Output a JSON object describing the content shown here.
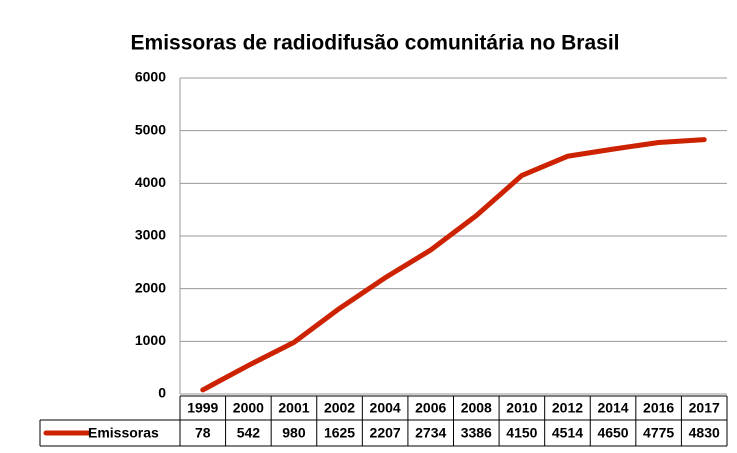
{
  "chart_data": {
    "type": "line",
    "title": "Emissoras de radiodifusão comunitária no Brasil",
    "categories": [
      "1999",
      "2000",
      "2001",
      "2002",
      "2004",
      "2006",
      "2008",
      "2010",
      "2012",
      "2014",
      "2016",
      "2017"
    ],
    "series": [
      {
        "name": "Emissoras",
        "color": "#cc2200",
        "values": [
          78,
          542,
          980,
          1625,
          2207,
          2734,
          3386,
          4150,
          4514,
          4650,
          4775,
          4830
        ]
      }
    ],
    "ylim": [
      0,
      6000
    ],
    "yticks": [
      0,
      1000,
      2000,
      3000,
      4000,
      5000,
      6000
    ],
    "grid": true
  }
}
